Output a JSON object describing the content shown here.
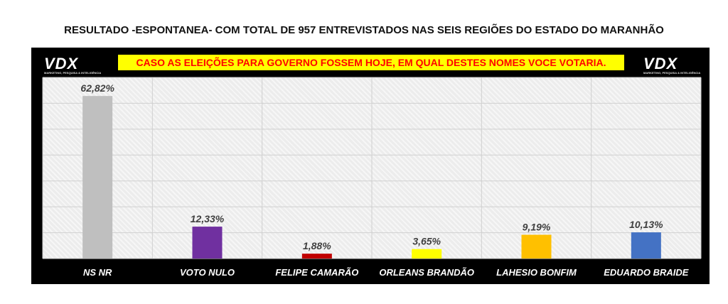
{
  "title": "RESULTADO -ESPONTANEA- COM TOTAL DE 957 ENTREVISTADOS NAS SEIS REGIÕES DO ESTADO DO MARANHÃO",
  "question": "CASO AS ELEIÇÕES PARA GOVERNO FOSSEM HOJE, EM QUAL DESTES NOMES VOCE VOTARIA.",
  "logo": {
    "text": "VDX",
    "tagline": "MARKETING, PESQUISA & INTELIGÊNCIA"
  },
  "chart_data": {
    "type": "bar",
    "categories": [
      "NS NR",
      "VOTO NULO",
      "FELIPE CAMARÃO",
      "ORLEANS BRANDÃO",
      "LAHESIO BONFIM",
      "EDUARDO BRAIDE"
    ],
    "values": [
      62.82,
      12.33,
      1.88,
      3.65,
      9.19,
      10.13
    ],
    "data_labels": [
      "62,82%",
      "12,33%",
      "1,88%",
      "3,65%",
      "9,19%",
      "10,13%"
    ],
    "colors": [
      "#bfbfbf",
      "#7030a0",
      "#c00000",
      "#ffff00",
      "#ffc000",
      "#4472c4"
    ],
    "ylim": [
      0,
      70
    ],
    "grid": true
  }
}
